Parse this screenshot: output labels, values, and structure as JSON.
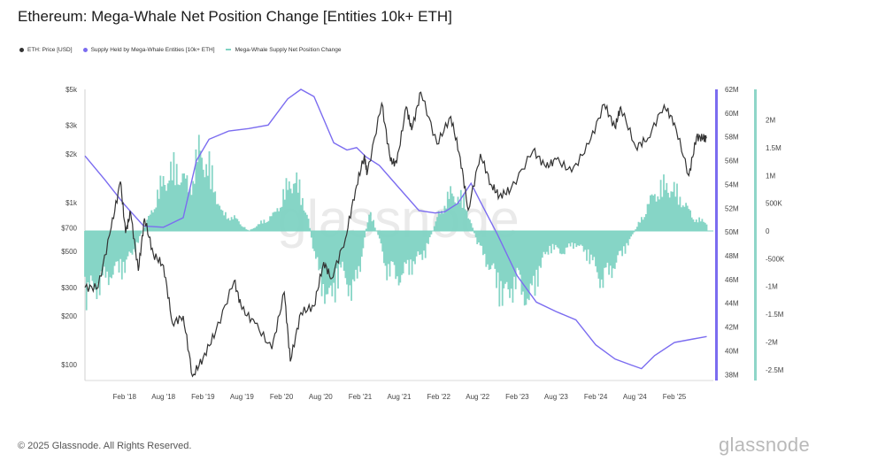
{
  "title": "Ethereum: Mega-Whale Net Position Change [Entities 10k+ ETH]",
  "copyright": "© 2025 Glassnode. All Rights Reserved.",
  "brand": "glassnode",
  "watermark": "glassnode",
  "legend": [
    {
      "label": "ETH: Price [USD]",
      "color": "#333333",
      "marker": "dot"
    },
    {
      "label": "Supply Held by Mega-Whale Entities [10k+ ETH]",
      "color": "#7b6cf0",
      "marker": "dot"
    },
    {
      "label": "Mega-Whale Supply Net Position Change",
      "color": "#7fd3c3",
      "marker": "dash"
    }
  ],
  "colors": {
    "price": "#333333",
    "supply": "#7b6cf0",
    "net_change": "#7fd3c3",
    "axis_bar": "#8ed6c8"
  },
  "chart_data": {
    "type": "line",
    "title": "Ethereum: Mega-Whale Net Position Change [Entities 10k+ ETH]",
    "x_ticks": [
      {
        "date": "2018-02-01",
        "label": "Feb '18"
      },
      {
        "date": "2018-08-01",
        "label": "Aug '18"
      },
      {
        "date": "2019-02-01",
        "label": "Feb '19"
      },
      {
        "date": "2019-08-01",
        "label": "Aug '19"
      },
      {
        "date": "2020-02-01",
        "label": "Feb '20"
      },
      {
        "date": "2020-08-01",
        "label": "Aug '20"
      },
      {
        "date": "2021-02-01",
        "label": "Feb '21"
      },
      {
        "date": "2021-08-01",
        "label": "Aug '21"
      },
      {
        "date": "2022-02-01",
        "label": "Feb '22"
      },
      {
        "date": "2022-08-01",
        "label": "Aug '22"
      },
      {
        "date": "2023-02-01",
        "label": "Feb '23"
      },
      {
        "date": "2023-08-01",
        "label": "Aug '23"
      },
      {
        "date": "2024-02-01",
        "label": "Feb '24"
      },
      {
        "date": "2024-08-01",
        "label": "Aug '24"
      },
      {
        "date": "2025-02-01",
        "label": "Feb '25"
      }
    ],
    "x_range": [
      "2017-08-01",
      "2025-08-01"
    ],
    "y_axes": {
      "price": {
        "scale": "log",
        "range": [
          80,
          5000
        ],
        "ticks": [
          {
            "value": 100,
            "label": "$100"
          },
          {
            "value": 200,
            "label": "$200"
          },
          {
            "value": 300,
            "label": "$300"
          },
          {
            "value": 500,
            "label": "$500"
          },
          {
            "value": 700,
            "label": "$700"
          },
          {
            "value": 1000,
            "label": "$1k"
          },
          {
            "value": 2000,
            "label": "$2k"
          },
          {
            "value": 3000,
            "label": "$3k"
          },
          {
            "value": 5000,
            "label": "$5k"
          }
        ]
      },
      "supply": {
        "scale": "linear",
        "range": [
          37500000,
          62000000
        ],
        "ticks": [
          {
            "value": 38000000,
            "label": "38M"
          },
          {
            "value": 40000000,
            "label": "40M"
          },
          {
            "value": 42000000,
            "label": "42M"
          },
          {
            "value": 44000000,
            "label": "44M"
          },
          {
            "value": 46000000,
            "label": "46M"
          },
          {
            "value": 48000000,
            "label": "48M"
          },
          {
            "value": 50000000,
            "label": "50M"
          },
          {
            "value": 52000000,
            "label": "52M"
          },
          {
            "value": 54000000,
            "label": "54M"
          },
          {
            "value": 56000000,
            "label": "56M"
          },
          {
            "value": 58000000,
            "label": "58M"
          },
          {
            "value": 60000000,
            "label": "60M"
          },
          {
            "value": 62000000,
            "label": "62M"
          }
        ]
      },
      "net_change": {
        "scale": "linear",
        "range": [
          -2550000,
          2550000
        ],
        "ticks": [
          {
            "value": 2000000,
            "label": "2M"
          },
          {
            "value": 1500000,
            "label": "1.5M"
          },
          {
            "value": 1000000,
            "label": "1M"
          },
          {
            "value": 500000,
            "label": "500K"
          },
          {
            "value": 0,
            "label": "0"
          },
          {
            "value": -500000,
            "label": "-500K"
          },
          {
            "value": -1000000,
            "label": "-1M"
          },
          {
            "value": -1500000,
            "label": "-1.5M"
          },
          {
            "value": -2000000,
            "label": "-2M"
          },
          {
            "value": -2500000,
            "label": "-2.5M"
          }
        ]
      }
    },
    "series": [
      {
        "name": "ETH: Price [USD]",
        "axis": "price",
        "kind": "line",
        "points": [
          [
            "2017-08-01",
            300
          ],
          [
            "2017-10-01",
            300
          ],
          [
            "2017-12-01",
            700
          ],
          [
            "2018-01-13",
            1350
          ],
          [
            "2018-02-06",
            650
          ],
          [
            "2018-03-01",
            870
          ],
          [
            "2018-04-06",
            380
          ],
          [
            "2018-05-05",
            800
          ],
          [
            "2018-06-15",
            480
          ],
          [
            "2018-08-01",
            410
          ],
          [
            "2018-09-12",
            180
          ],
          [
            "2018-11-01",
            200
          ],
          [
            "2018-12-14",
            85
          ],
          [
            "2019-02-01",
            110
          ],
          [
            "2019-04-01",
            160
          ],
          [
            "2019-06-26",
            330
          ],
          [
            "2019-08-01",
            220
          ],
          [
            "2019-10-01",
            180
          ],
          [
            "2019-12-18",
            125
          ],
          [
            "2020-02-14",
            280
          ],
          [
            "2020-03-13",
            105
          ],
          [
            "2020-05-01",
            210
          ],
          [
            "2020-07-01",
            230
          ],
          [
            "2020-08-15",
            430
          ],
          [
            "2020-09-20",
            340
          ],
          [
            "2020-11-24",
            600
          ],
          [
            "2021-01-10",
            1200
          ],
          [
            "2021-02-20",
            1950
          ],
          [
            "2021-03-05",
            1500
          ],
          [
            "2021-05-12",
            4100
          ],
          [
            "2021-06-22",
            1800
          ],
          [
            "2021-07-20",
            1750
          ],
          [
            "2021-09-03",
            3900
          ],
          [
            "2021-09-28",
            2800
          ],
          [
            "2021-11-10",
            4800
          ],
          [
            "2022-01-24",
            2300
          ],
          [
            "2022-03-29",
            3400
          ],
          [
            "2022-05-12",
            1900
          ],
          [
            "2022-06-18",
            900
          ],
          [
            "2022-08-14",
            2000
          ],
          [
            "2022-10-01",
            1300
          ],
          [
            "2022-11-10",
            1100
          ],
          [
            "2023-01-01",
            1200
          ],
          [
            "2023-04-16",
            2100
          ],
          [
            "2023-06-15",
            1650
          ],
          [
            "2023-08-01",
            1850
          ],
          [
            "2023-10-12",
            1550
          ],
          [
            "2023-12-31",
            2300
          ],
          [
            "2024-03-12",
            4050
          ],
          [
            "2024-05-01",
            2900
          ],
          [
            "2024-05-27",
            3900
          ],
          [
            "2024-08-05",
            2200
          ],
          [
            "2024-10-01",
            2500
          ],
          [
            "2024-12-15",
            4000
          ],
          [
            "2025-02-01",
            3100
          ],
          [
            "2025-04-09",
            1470
          ],
          [
            "2025-05-15",
            2550
          ],
          [
            "2025-06-15",
            2500
          ],
          [
            "2025-07-01",
            2500
          ]
        ]
      },
      {
        "name": "Supply Held by Mega-Whale Entities [10k+ ETH]",
        "axis": "supply",
        "kind": "line",
        "points": [
          [
            "2017-08-01",
            56400000
          ],
          [
            "2017-11-01",
            54400000
          ],
          [
            "2018-02-01",
            52300000
          ],
          [
            "2018-05-01",
            50500000
          ],
          [
            "2018-08-01",
            50400000
          ],
          [
            "2018-11-01",
            51200000
          ],
          [
            "2019-01-01",
            56000000
          ],
          [
            "2019-03-01",
            57800000
          ],
          [
            "2019-06-01",
            58500000
          ],
          [
            "2019-09-01",
            58700000
          ],
          [
            "2019-12-01",
            59000000
          ],
          [
            "2020-03-01",
            61200000
          ],
          [
            "2020-05-01",
            62000000
          ],
          [
            "2020-07-01",
            61400000
          ],
          [
            "2020-08-15",
            59500000
          ],
          [
            "2020-10-01",
            57500000
          ],
          [
            "2020-12-01",
            56900000
          ],
          [
            "2021-01-15",
            57100000
          ],
          [
            "2021-03-01",
            56300000
          ],
          [
            "2021-05-01",
            55600000
          ],
          [
            "2021-08-01",
            53700000
          ],
          [
            "2021-11-01",
            51800000
          ],
          [
            "2022-01-15",
            51600000
          ],
          [
            "2022-03-01",
            51700000
          ],
          [
            "2022-05-01",
            52400000
          ],
          [
            "2022-07-01",
            54100000
          ],
          [
            "2022-08-15",
            52500000
          ],
          [
            "2022-11-01",
            49800000
          ],
          [
            "2023-02-01",
            46300000
          ],
          [
            "2023-05-01",
            44100000
          ],
          [
            "2023-08-01",
            43300000
          ],
          [
            "2023-11-01",
            42600000
          ],
          [
            "2024-02-01",
            40500000
          ],
          [
            "2024-05-01",
            39300000
          ],
          [
            "2024-07-15",
            38800000
          ],
          [
            "2024-09-01",
            38500000
          ],
          [
            "2024-11-01",
            39600000
          ],
          [
            "2025-02-01",
            40700000
          ],
          [
            "2025-05-01",
            41000000
          ],
          [
            "2025-07-01",
            41200000
          ]
        ]
      },
      {
        "name": "Mega-Whale Supply Net Position Change",
        "axis": "net_change",
        "kind": "area",
        "points": [
          [
            "2017-08-01",
            -1500000
          ],
          [
            "2017-10-01",
            -1300000
          ],
          [
            "2017-12-01",
            -1000000
          ],
          [
            "2018-02-01",
            -850000
          ],
          [
            "2018-04-01",
            -300000
          ],
          [
            "2018-06-01",
            400000
          ],
          [
            "2018-08-01",
            1200000
          ],
          [
            "2018-10-01",
            1500000
          ],
          [
            "2018-12-01",
            1000000
          ],
          [
            "2019-01-15",
            1900000
          ],
          [
            "2019-03-01",
            1500000
          ],
          [
            "2019-05-01",
            400000
          ],
          [
            "2019-07-01",
            300000
          ],
          [
            "2019-09-01",
            0
          ],
          [
            "2019-11-01",
            200000
          ],
          [
            "2020-01-01",
            400000
          ],
          [
            "2020-02-15",
            900000
          ],
          [
            "2020-04-01",
            1300000
          ],
          [
            "2020-06-01",
            400000
          ],
          [
            "2020-07-01",
            -500000
          ],
          [
            "2020-08-01",
            -1200000
          ],
          [
            "2020-09-15",
            -1700000
          ],
          [
            "2020-11-01",
            -900000
          ],
          [
            "2021-01-01",
            -1500000
          ],
          [
            "2021-02-01",
            -800000
          ],
          [
            "2021-03-15",
            500000
          ],
          [
            "2021-05-01",
            -200000
          ],
          [
            "2021-06-01",
            -900000
          ],
          [
            "2021-08-01",
            -1100000
          ],
          [
            "2021-10-01",
            -800000
          ],
          [
            "2021-12-01",
            -500000
          ],
          [
            "2022-02-01",
            400000
          ],
          [
            "2022-04-01",
            900000
          ],
          [
            "2022-06-01",
            700000
          ],
          [
            "2022-08-01",
            -300000
          ],
          [
            "2022-10-01",
            -900000
          ],
          [
            "2022-12-01",
            -1600000
          ],
          [
            "2023-02-01",
            -1200000
          ],
          [
            "2023-04-01",
            -1700000
          ],
          [
            "2023-05-15",
            -900000
          ],
          [
            "2023-07-01",
            -400000
          ],
          [
            "2023-09-01",
            -500000
          ],
          [
            "2023-11-01",
            -300000
          ],
          [
            "2024-01-01",
            -600000
          ],
          [
            "2024-03-01",
            -1200000
          ],
          [
            "2024-05-01",
            -800000
          ],
          [
            "2024-07-01",
            -300000
          ],
          [
            "2024-09-01",
            300000
          ],
          [
            "2024-11-01",
            900000
          ],
          [
            "2025-01-01",
            1100000
          ],
          [
            "2025-03-01",
            800000
          ],
          [
            "2025-05-01",
            300000
          ],
          [
            "2025-07-01",
            200000
          ]
        ]
      }
    ]
  }
}
